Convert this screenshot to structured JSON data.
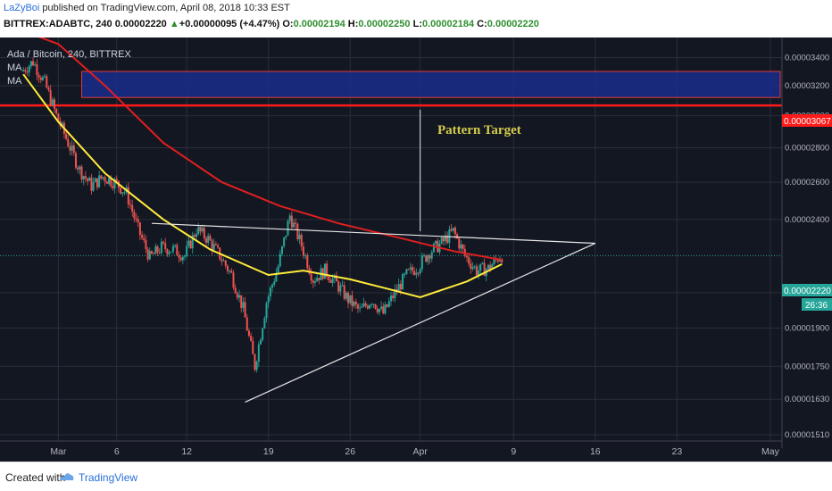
{
  "header": {
    "author": "LaZyBoi",
    "published_text": " published on TradingView.com, April 08, 2018 10:33 EST",
    "symbol": "BITTREX:ADABTC, 240",
    "last": "0.00002220",
    "change_arrow": "▲",
    "change": "+0.00000095 (+4.47%)",
    "o_label": "O:",
    "o": "0.00002194",
    "h_label": "H:",
    "h": "0.00002250",
    "l_label": "L:",
    "l": "0.00002184",
    "c_label": "C:",
    "c": "0.00002220"
  },
  "legend": {
    "title": "Ada / Bitcoin, 240, BITTREX",
    "ma1": "MA",
    "ma2": "MA"
  },
  "annotation": {
    "pattern_target": "Pattern Target"
  },
  "price_labels": {
    "target": "0.00003067",
    "current": "0.00002220",
    "countdown": "26:36"
  },
  "footer": {
    "created": "Created with",
    "brand": "TradingView"
  },
  "colors": {
    "background": "#131722",
    "grid": "#2a2e39",
    "candle_up": "#26a69a",
    "candle_down": "#ef5350",
    "ma_fast": "#ffeb3b",
    "ma_slow": "#e01f1f",
    "zone_fill": "#1a2d8c",
    "target_line": "#ff1a1a",
    "annotation_text": "#d4cc4c"
  },
  "chart_data": {
    "type": "candlestick",
    "title": "Ada / Bitcoin, 240, BITTREX",
    "x_ticks": [
      "Mar",
      "6",
      "12",
      "19",
      "26",
      "Apr",
      "9",
      "16",
      "23",
      "May"
    ],
    "y_ticks": [
      "0.00003400",
      "0.00003200",
      "0.00003000",
      "0.00002800",
      "0.00002600",
      "0.00002400",
      "0.00002050",
      "0.00001900",
      "0.00001750",
      "0.00001630",
      "0.00001510"
    ],
    "y_scale": "log",
    "ylim": [
      1.49e-05,
      3.55e-05
    ],
    "price_path": [
      [
        "2018-02-26",
        3.3e-05
      ],
      [
        "2018-02-27",
        3.37e-05
      ],
      [
        "2018-02-28",
        3.22e-05
      ],
      [
        "2018-03-01",
        3e-05
      ],
      [
        "2018-03-02",
        2.83e-05
      ],
      [
        "2018-03-03",
        2.67e-05
      ],
      [
        "2018-03-04",
        2.58e-05
      ],
      [
        "2018-03-05",
        2.63e-05
      ],
      [
        "2018-03-06",
        2.6e-05
      ],
      [
        "2018-03-07",
        2.54e-05
      ],
      [
        "2018-03-08",
        2.35e-05
      ],
      [
        "2018-03-09",
        2.21e-05
      ],
      [
        "2018-03-10",
        2.26e-05
      ],
      [
        "2018-03-11",
        2.25e-05
      ],
      [
        "2018-03-12",
        2.22e-05
      ],
      [
        "2018-03-13",
        2.35e-05
      ],
      [
        "2018-03-14",
        2.3e-05
      ],
      [
        "2018-03-15",
        2.22e-05
      ],
      [
        "2018-03-16",
        2.13e-05
      ],
      [
        "2018-03-17",
        1.98e-05
      ],
      [
        "2018-03-18",
        1.75e-05
      ],
      [
        "2018-03-19",
        2.01e-05
      ],
      [
        "2018-03-20",
        2.17e-05
      ],
      [
        "2018-03-21",
        2.42e-05
      ],
      [
        "2018-03-22",
        2.27e-05
      ],
      [
        "2018-03-23",
        2.11e-05
      ],
      [
        "2018-03-24",
        2.15e-05
      ],
      [
        "2018-03-25",
        2.09e-05
      ],
      [
        "2018-03-26",
        2.02e-05
      ],
      [
        "2018-03-27",
        1.97e-05
      ],
      [
        "2018-03-28",
        2.02e-05
      ],
      [
        "2018-03-29",
        1.96e-05
      ],
      [
        "2018-03-30",
        2.05e-05
      ],
      [
        "2018-03-31",
        2.13e-05
      ],
      [
        "2018-04-01",
        2.17e-05
      ],
      [
        "2018-04-02",
        2.24e-05
      ],
      [
        "2018-04-03",
        2.28e-05
      ],
      [
        "2018-04-04",
        2.34e-05
      ],
      [
        "2018-04-05",
        2.22e-05
      ],
      [
        "2018-04-06",
        2.15e-05
      ],
      [
        "2018-04-07",
        2.16e-05
      ],
      [
        "2018-04-08",
        2.22e-05
      ]
    ],
    "series": [
      {
        "values": [
          [
            "2018-02-26",
            3.28e-05
          ],
          [
            "2018-03-01",
            2.96e-05
          ],
          [
            "2018-03-05",
            2.65e-05
          ],
          [
            "2018-03-10",
            2.4e-05
          ],
          [
            "2018-03-14",
            2.25e-05
          ],
          [
            "2018-03-19",
            2.13e-05
          ],
          [
            "2018-03-22",
            2.15e-05
          ],
          [
            "2018-03-26",
            2.11e-05
          ],
          [
            "2018-03-29",
            2.07e-05
          ],
          [
            "2018-04-01",
            2.03e-05
          ],
          [
            "2018-04-05",
            2.1e-05
          ],
          [
            "2018-04-08",
            2.18e-05
          ]
        ]
      },
      {
        "values": [
          [
            "2018-02-26",
            3.6e-05
          ],
          [
            "2018-03-01",
            3.5e-05
          ],
          [
            "2018-03-05",
            3.2e-05
          ],
          [
            "2018-03-10",
            2.83e-05
          ],
          [
            "2018-03-15",
            2.6e-05
          ],
          [
            "2018-03-20",
            2.47e-05
          ],
          [
            "2018-03-25",
            2.38e-05
          ],
          [
            "2018-03-30",
            2.31e-05
          ],
          [
            "2018-04-04",
            2.24e-05
          ],
          [
            "2018-04-08",
            2.2e-05
          ]
        ]
      }
    ],
    "horizontal_lines": [
      {
        "value": 3.067e-05
      }
    ],
    "zones": [
      {
        "from_date": "2018-03-03",
        "to_date": "2018-05-10",
        "low": 3.12e-05,
        "high": 3.3e-05
      }
    ],
    "trend_lines": [
      {
        "from": [
          "2018-03-09",
          2.38e-05
        ],
        "to": [
          "2018-04-16",
          2.28e-05
        ]
      },
      {
        "from": [
          "2018-03-17",
          1.62e-05
        ],
        "to": [
          "2018-04-16",
          2.28e-05
        ]
      }
    ],
    "target_arrow": {
      "date": "2018-04-01",
      "from": 2.34e-05,
      "to": 3.04e-05
    }
  }
}
